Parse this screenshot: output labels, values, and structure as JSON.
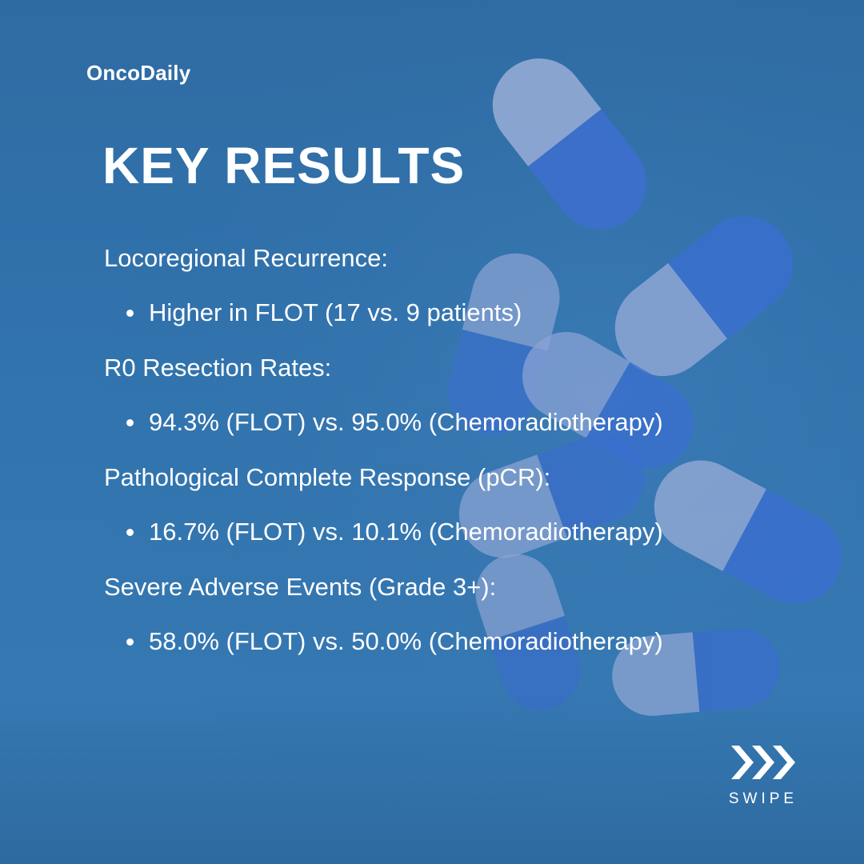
{
  "brand": "OncoDaily",
  "title": "KEY RESULTS",
  "results": [
    {
      "heading": "Locoregional Recurrence:",
      "bullet": "Higher in FLOT (17 vs. 9 patients)"
    },
    {
      "heading": "R0 Resection Rates:",
      "bullet": "94.3% (FLOT) vs. 95.0% (Chemoradiotherapy)"
    },
    {
      "heading": "Pathological Complete Response (pCR):",
      "bullet": "16.7% (FLOT) vs. 10.1% (Chemoradiotherapy)"
    },
    {
      "heading": "Severe Adverse Events (Grade 3+):",
      "bullet": "58.0% (FLOT) vs. 50.0% (Chemoradiotherapy)"
    }
  ],
  "swipe": {
    "label": "SWIPE",
    "icon": "triple-chevron-right-icon"
  },
  "colors": {
    "background": "#3173ad",
    "text": "#ffffff",
    "capsule_light": "#8fa6d6",
    "capsule_dark": "#3a6fd0"
  }
}
